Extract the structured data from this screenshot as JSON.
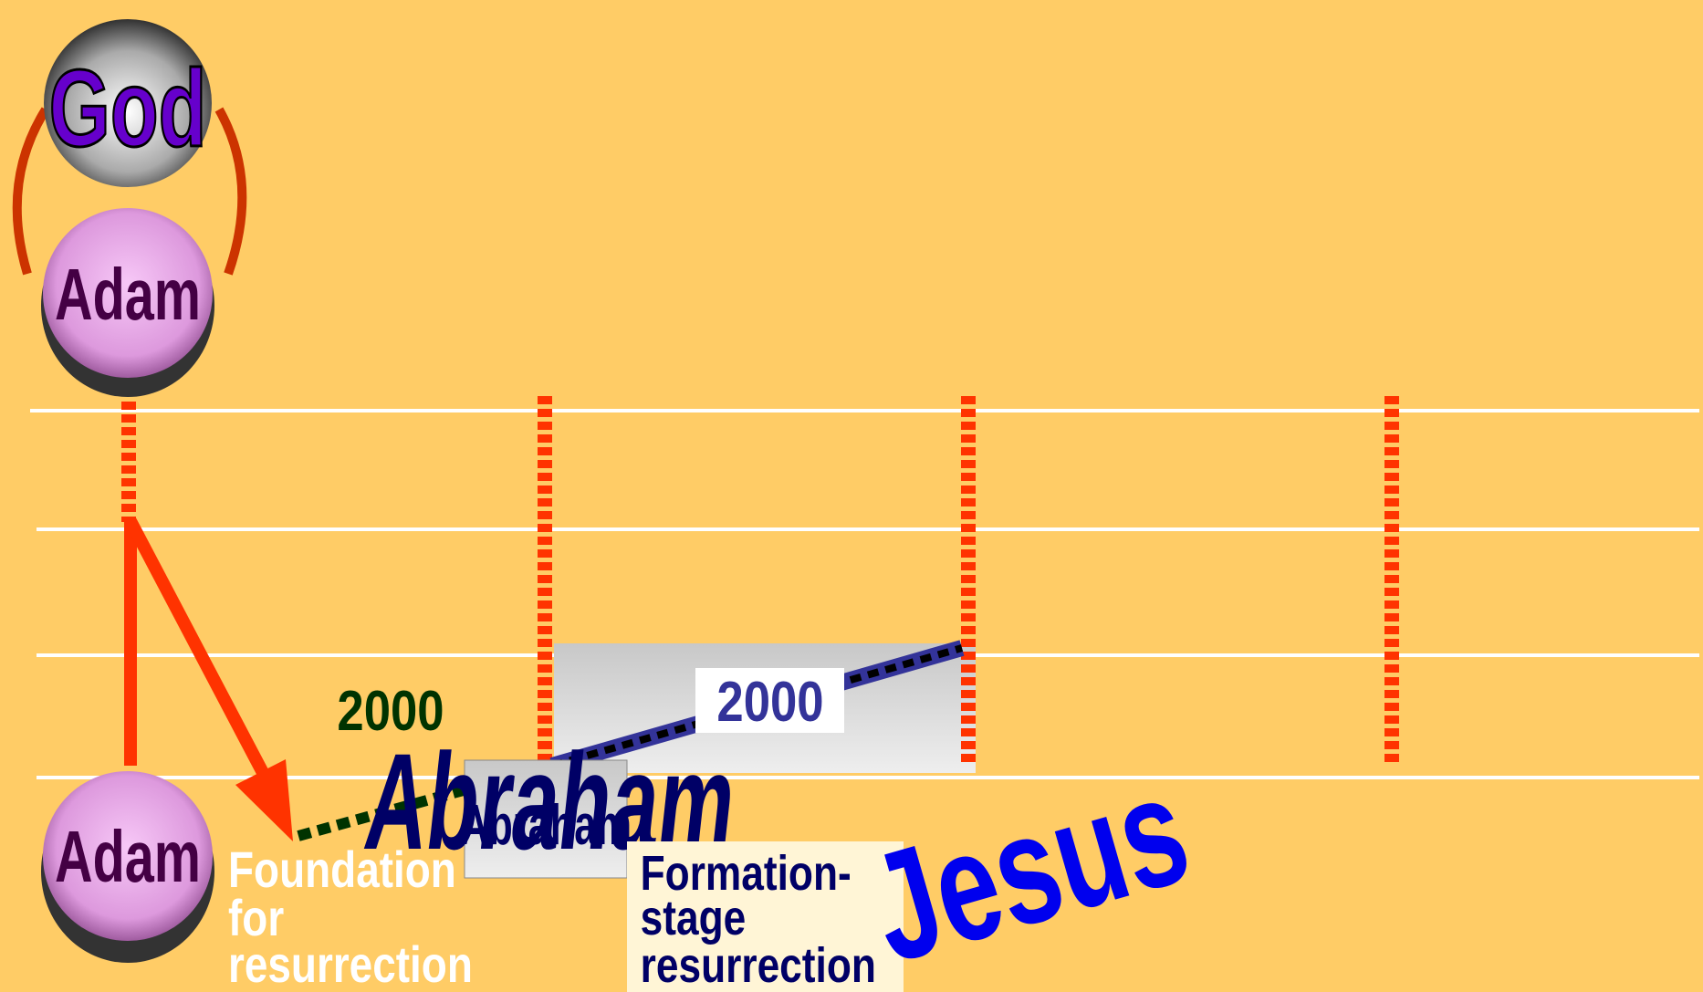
{
  "nodes": {
    "god": "God",
    "adam_top": "Adam",
    "adam_bottom": "Adam",
    "years_green": "2000",
    "years_blue": "2000",
    "abraham_small": "Abraham",
    "abraham_large": "Abraham",
    "foundation": [
      "Foundation",
      "for",
      "resurrection"
    ],
    "formation": [
      "Formation-",
      "stage",
      "resurrection"
    ],
    "jesus": "Jesus"
  }
}
